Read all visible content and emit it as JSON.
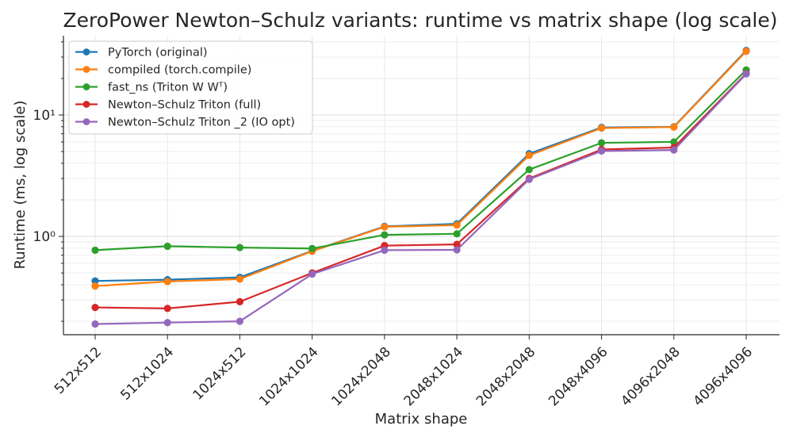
{
  "chart_data": {
    "type": "line",
    "title": "ZeroPower Newton–Schulz variants: runtime vs matrix shape (log scale)",
    "xlabel": "Matrix shape",
    "ylabel": "Runtime (ms, log scale)",
    "yscale": "log",
    "ylim": [
      0.155,
      45
    ],
    "y_ticks": [
      {
        "value": 1,
        "label": "10⁰"
      },
      {
        "value": 10,
        "label": "10¹"
      }
    ],
    "grid": true,
    "legend_position": "top-left",
    "categories": [
      "512x512",
      "512x1024",
      "1024x512",
      "1024x1024",
      "1024x2048",
      "2048x1024",
      "2048x2048",
      "2048x4096",
      "4096x2048",
      "4096x4096"
    ],
    "series": [
      {
        "name": "PyTorch (original)",
        "color": "#1f77b4",
        "values": [
          0.43,
          0.44,
          0.46,
          0.76,
          1.21,
          1.27,
          4.8,
          7.9,
          8.0,
          34.0
        ]
      },
      {
        "name": "compiled (torch.compile)",
        "color": "#ff7f0e",
        "values": [
          0.39,
          0.425,
          0.445,
          0.755,
          1.2,
          1.24,
          4.65,
          7.8,
          7.95,
          33.5
        ]
      },
      {
        "name": "fast_ns (Triton W Wᵀ)",
        "color": "#2ca02c",
        "values": [
          0.77,
          0.83,
          0.81,
          0.795,
          1.03,
          1.05,
          3.55,
          5.9,
          6.0,
          23.5
        ]
      },
      {
        "name": "Newton–Schulz Triton (full)",
        "color": "#d62728",
        "values": [
          0.26,
          0.255,
          0.29,
          0.5,
          0.84,
          0.86,
          3.0,
          5.2,
          5.4,
          22.0
        ]
      },
      {
        "name": "Newton–Schulz Triton _2 (IO opt)",
        "color": "#9467bd",
        "values": [
          0.19,
          0.195,
          0.2,
          0.49,
          0.77,
          0.775,
          2.95,
          5.05,
          5.15,
          21.8
        ]
      }
    ]
  }
}
